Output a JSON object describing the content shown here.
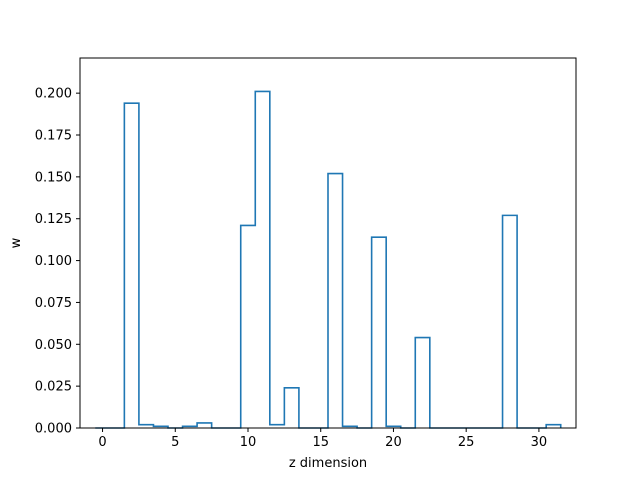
{
  "chart_data": {
    "type": "histogram-step",
    "title": "",
    "xlabel": "z dimension",
    "ylabel": "w",
    "xlim": [
      -1.55,
      32.55
    ],
    "ylim": [
      0,
      0.221
    ],
    "xticks": [
      0,
      5,
      10,
      15,
      20,
      25,
      30
    ],
    "yticks": [
      0.0,
      0.025,
      0.05,
      0.075,
      0.1,
      0.125,
      0.15,
      0.175,
      0.2
    ],
    "ytick_labels": [
      "0.000",
      "0.025",
      "0.050",
      "0.075",
      "0.100",
      "0.125",
      "0.150",
      "0.175",
      "0.200"
    ],
    "xtick_labels": [
      "0",
      "5",
      "10",
      "15",
      "20",
      "25",
      "30"
    ],
    "grid": false,
    "series": [
      {
        "color": "#1f77b4",
        "bin_width": 1,
        "x": [
          0,
          1,
          2,
          3,
          4,
          5,
          6,
          7,
          8,
          9,
          10,
          11,
          12,
          13,
          14,
          15,
          16,
          17,
          18,
          19,
          20,
          21,
          22,
          23,
          24,
          25,
          26,
          27,
          28,
          29,
          30,
          31
        ],
        "values": [
          0.0,
          0.0,
          0.194,
          0.002,
          0.001,
          0.0,
          0.001,
          0.003,
          0.0,
          0.0,
          0.121,
          0.201,
          0.002,
          0.024,
          0.0,
          0.0,
          0.152,
          0.001,
          0.0,
          0.114,
          0.001,
          0.0,
          0.054,
          0.0,
          0.0,
          0.0,
          0.0,
          0.0,
          0.127,
          0.0,
          0.0,
          0.002
        ]
      }
    ]
  }
}
